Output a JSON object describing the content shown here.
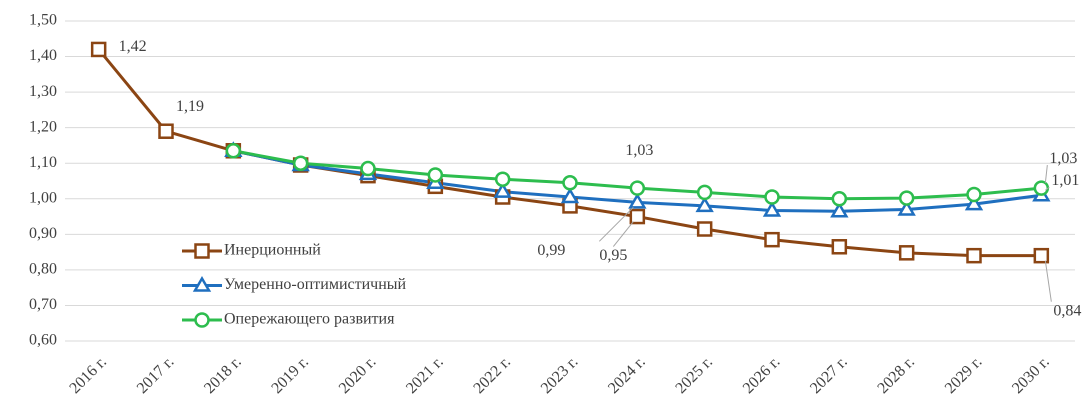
{
  "chart_data": {
    "type": "line",
    "categories": [
      "2016 г.",
      "2017 г.",
      "2018 г.",
      "2019 г.",
      "2020 г.",
      "2021 г.",
      "2022 г.",
      "2023 г.",
      "2024 г.",
      "2025 г.",
      "2026 г.",
      "2027 г.",
      "2028 г.",
      "2029 г.",
      "2030 г."
    ],
    "series": [
      {
        "name": "Инерционный",
        "color": "#8b4513",
        "marker": "square",
        "values": [
          1.42,
          1.19,
          1.135,
          1.095,
          1.065,
          1.035,
          1.005,
          0.98,
          0.95,
          0.915,
          0.885,
          0.865,
          0.848,
          0.84,
          0.84
        ],
        "value_labels": [
          "1,42",
          "1,19",
          null,
          null,
          null,
          null,
          null,
          null,
          "0,95",
          null,
          null,
          null,
          null,
          null,
          "0,84"
        ]
      },
      {
        "name": "Умеренно-оптимистичный",
        "color": "#1f6fbf",
        "marker": "triangle",
        "values": [
          null,
          null,
          1.135,
          1.095,
          1.07,
          1.045,
          1.02,
          1.005,
          0.99,
          0.98,
          0.967,
          0.965,
          0.97,
          0.985,
          1.01
        ],
        "value_labels": [
          null,
          null,
          null,
          null,
          null,
          null,
          null,
          null,
          "0,99",
          null,
          null,
          null,
          null,
          null,
          "1,01"
        ]
      },
      {
        "name": "Опережающего развития",
        "color": "#2dbd4e",
        "marker": "circle",
        "values": [
          null,
          null,
          1.135,
          1.1,
          1.085,
          1.067,
          1.055,
          1.045,
          1.03,
          1.018,
          1.005,
          1.0,
          1.002,
          1.012,
          1.03
        ],
        "value_labels": [
          null,
          null,
          null,
          null,
          null,
          null,
          null,
          null,
          "1,03",
          null,
          null,
          null,
          null,
          null,
          "1,03"
        ]
      }
    ],
    "ylim": [
      0.6,
      1.5
    ],
    "yticks": [
      {
        "value": 0.6,
        "label": "0,60"
      },
      {
        "value": 0.7,
        "label": "0,70"
      },
      {
        "value": 0.8,
        "label": "0,80"
      },
      {
        "value": 0.9,
        "label": "0,90"
      },
      {
        "value": 1.0,
        "label": "1,00"
      },
      {
        "value": 1.1,
        "label": "1,10"
      },
      {
        "value": 1.2,
        "label": "1,20"
      },
      {
        "value": 1.3,
        "label": "1,30"
      },
      {
        "value": 1.4,
        "label": "1,40"
      },
      {
        "value": 1.5,
        "label": "1,50"
      }
    ],
    "grid": true,
    "legend": "lower-left"
  }
}
